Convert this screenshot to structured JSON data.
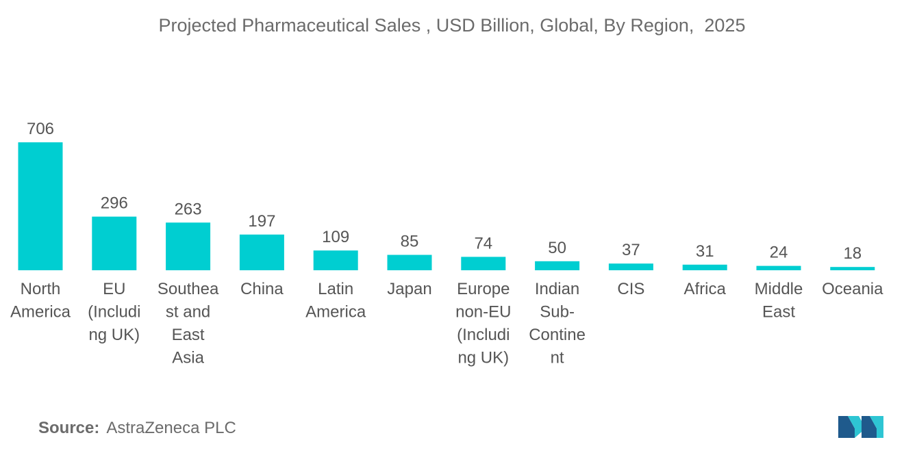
{
  "source": {
    "label": "Source:",
    "value": "AstraZeneca PLC"
  },
  "logo": {
    "icon": "mordor-intelligence-logo-icon",
    "color_dark": "#1f5a8c",
    "color_light": "#2ec5d3"
  },
  "colors": {
    "bar": "#00ced1",
    "text": "#555555"
  },
  "chart_data": {
    "type": "bar",
    "title": "Projected Pharmaceutical Sales , USD Billion, Global, By Region,  2025",
    "xlabel": "",
    "ylabel": "",
    "grid": false,
    "legend": "none",
    "ylim": [
      0,
      706
    ],
    "categories": [
      [
        "North",
        "America"
      ],
      [
        "EU",
        "(Includi",
        "ng UK)"
      ],
      [
        "Southea",
        "st and",
        "East",
        "Asia"
      ],
      [
        "China"
      ],
      [
        "Latin",
        "America"
      ],
      [
        "Japan"
      ],
      [
        "Europe",
        "non-EU",
        "(Includi",
        "ng UK)"
      ],
      [
        "Indian",
        "Sub-",
        "Contine",
        "nt"
      ],
      [
        "CIS"
      ],
      [
        "Africa"
      ],
      [
        "Middle",
        "East"
      ],
      [
        "Oceania"
      ]
    ],
    "values": [
      706,
      296,
      263,
      197,
      109,
      85,
      74,
      50,
      37,
      31,
      24,
      18
    ],
    "value_labels": [
      "706",
      "296",
      "263",
      "197",
      "109",
      "85",
      "74",
      "50",
      "37",
      "31",
      "24",
      "18"
    ]
  }
}
